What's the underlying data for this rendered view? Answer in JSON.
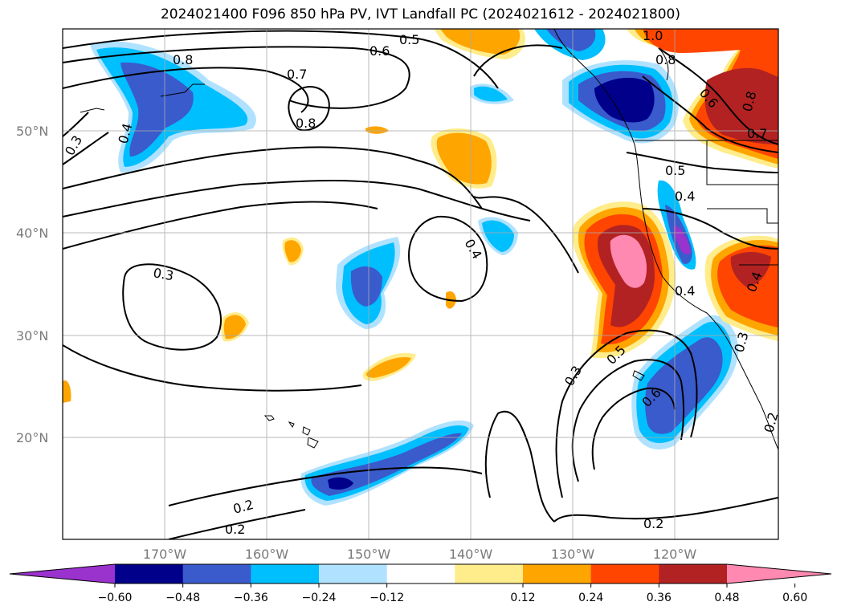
{
  "title": "2024021400 F096 850 hPa PV, IVT Landfall PC (2024021612 - 2024021800)",
  "axes": {
    "lat_ticks": [
      "20°N",
      "30°N",
      "40°N",
      "50°N"
    ],
    "lon_ticks": [
      "170°W",
      "160°W",
      "150°W",
      "140°W",
      "130°W",
      "120°W"
    ]
  },
  "contour_labels": [
    "0.5",
    "0.6",
    "0.8",
    "0.7",
    "0.8",
    "0.4",
    "0.3",
    "0.4",
    "0.3",
    "0.2",
    "0.2",
    "0.3",
    "0.5",
    "0.6",
    "0.2",
    "1.0",
    "0.8",
    "0.5",
    "0.4",
    "0.6",
    "0.8",
    "0.7",
    "0.4",
    "0.3",
    "0.2",
    "0.4"
  ],
  "colorbar": {
    "ticks": [
      "−0.60",
      "−0.48",
      "−0.36",
      "−0.24",
      "−0.12",
      "0.12",
      "0.24",
      "0.36",
      "0.48",
      "0.60"
    ],
    "colors": [
      "#9a32cd",
      "#00008b",
      "#3a5bcc",
      "#00bfff",
      "#b0e2ff",
      "#ffffff",
      "#ffec8b",
      "#ffa500",
      "#ff4500",
      "#b22222",
      "#ff89b0"
    ]
  },
  "palette": {
    "purple": "#9a32cd",
    "navy": "#00008b",
    "royal": "#3a5bcc",
    "sky": "#00bfff",
    "pale_blue": "#b0e2ff",
    "pale_yellow": "#ffec8b",
    "orange": "#ffa500",
    "red_orange": "#ff4500",
    "firebrick": "#b22222",
    "pink": "#ff89b0"
  }
}
